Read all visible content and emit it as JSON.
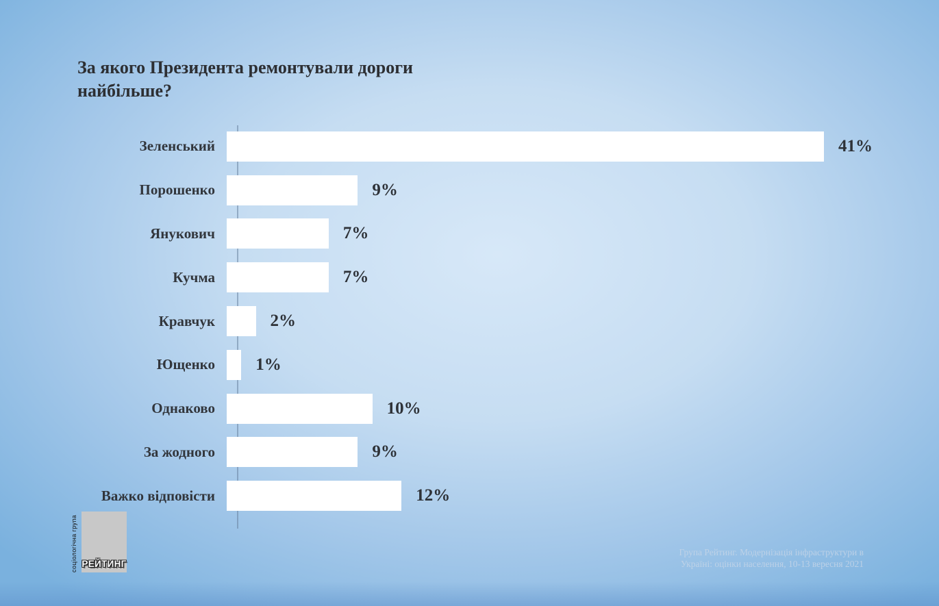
{
  "chart_data": {
    "type": "bar",
    "orientation": "horizontal",
    "title": "За якого Президента ремонтували дороги найбільше?",
    "categories": [
      "Зеленський",
      "Порошенко",
      "Янукович",
      "Кучма",
      "Кравчук",
      "Ющенко",
      "Однаково",
      "За жодного",
      "Важко відповісти"
    ],
    "values": [
      41,
      9,
      7,
      7,
      2,
      1,
      10,
      9,
      12
    ],
    "value_labels": [
      "41%",
      "9%",
      "7%",
      "7%",
      "2%",
      "1%",
      "10%",
      "9%",
      "12%"
    ],
    "unit": "%",
    "xlim": [
      0,
      41
    ],
    "grid": false,
    "legend": false,
    "bar_color": "#ffffff"
  },
  "logo": {
    "vertical_text": "соціологічна група",
    "name": "РЕЙТИНГ"
  },
  "source": {
    "line1": "Група Рейтинг. Модернізація інфраструктури в",
    "line2": "Україні: оцінки населення, 10-13 вересня 2021"
  },
  "colors": {
    "background_edge": "#7ab1de",
    "background_center": "#d7e8f8",
    "bar": "#ffffff",
    "title_text": "#2d2f33",
    "axis_line": "#69849f",
    "source_text": "#c2d4e8",
    "logo_square": "#c8c8c8"
  }
}
